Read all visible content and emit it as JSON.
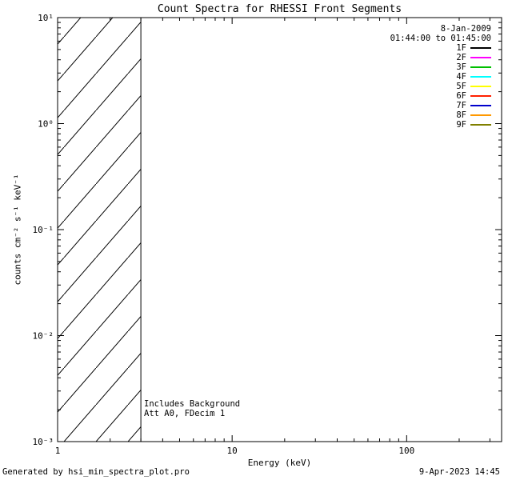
{
  "window": {
    "title": "Count Spectra for RHESSI Front Segments"
  },
  "chart_data": {
    "type": "line",
    "title": "Count Spectra for RHESSI Front Segments",
    "xlabel": "Energy (keV)",
    "ylabel": "counts cm⁻² s⁻¹ keV⁻¹",
    "x_scale": "log",
    "y_scale": "log",
    "xlim": [
      1,
      350
    ],
    "ylim": [
      0.001,
      10
    ],
    "x_ticks": [
      {
        "value": 1,
        "label": "1"
      },
      {
        "value": 10,
        "label": "10"
      },
      {
        "value": 100,
        "label": "100"
      }
    ],
    "y_ticks": [
      {
        "value": 0.001,
        "label": "10⁻³"
      },
      {
        "value": 0.01,
        "label": "10⁻²"
      },
      {
        "value": 0.1,
        "label": "10⁻¹"
      },
      {
        "value": 1,
        "label": "10⁰"
      },
      {
        "value": 10,
        "label": "10¹"
      }
    ],
    "series": [],
    "hatched_region": {
      "x_range": [
        1,
        3
      ],
      "style": "diagonal-hatch"
    },
    "annotations": [
      "Includes Background",
      "Att A0, FDecim 1"
    ],
    "legend": {
      "date": "8-Jan-2009",
      "time_range": "01:44:00 to 01:45:00",
      "entries": [
        {
          "label": "1F",
          "color": "#000000"
        },
        {
          "label": "2F",
          "color": "#ff00ff"
        },
        {
          "label": "3F",
          "color": "#00c000"
        },
        {
          "label": "4F",
          "color": "#00ffff"
        },
        {
          "label": "5F",
          "color": "#ffff00"
        },
        {
          "label": "6F",
          "color": "#ff2000"
        },
        {
          "label": "7F",
          "color": "#0000cc"
        },
        {
          "label": "8F",
          "color": "#ff9900"
        },
        {
          "label": "9F",
          "color": "#808000"
        }
      ]
    }
  },
  "footer": {
    "generated_by": "Generated by hsi_min_spectra_plot.pro",
    "timestamp": "9-Apr-2023 14:45"
  }
}
